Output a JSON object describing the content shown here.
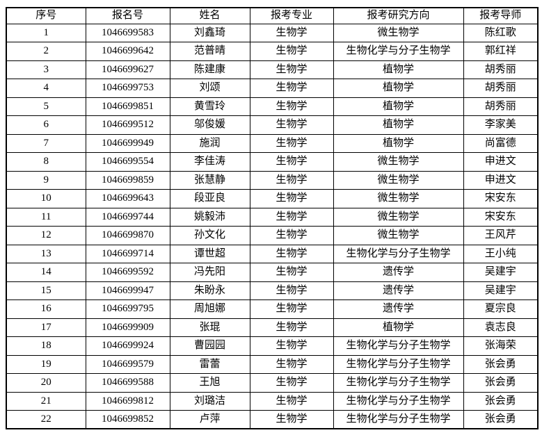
{
  "table": {
    "columns": [
      "序号",
      "报名号",
      "姓名",
      "报考专业",
      "报考研究方向",
      "报考导师"
    ],
    "rows": [
      [
        "1",
        "1046699583",
        "刘鑫琦",
        "生物学",
        "微生物学",
        "陈红歌"
      ],
      [
        "2",
        "1046699642",
        "范普晴",
        "生物学",
        "生物化学与分子生物学",
        "郭红祥"
      ],
      [
        "3",
        "1046699627",
        "陈建康",
        "生物学",
        "植物学",
        "胡秀丽"
      ],
      [
        "4",
        "1046699753",
        "刘颂",
        "生物学",
        "植物学",
        "胡秀丽"
      ],
      [
        "5",
        "1046699851",
        "黄雪玲",
        "生物学",
        "植物学",
        "胡秀丽"
      ],
      [
        "6",
        "1046699512",
        "邬俊媛",
        "生物学",
        "植物学",
        "李家美"
      ],
      [
        "7",
        "1046699949",
        "施润",
        "生物学",
        "植物学",
        "尚富德"
      ],
      [
        "8",
        "1046699554",
        "李佳涛",
        "生物学",
        "微生物学",
        "申进文"
      ],
      [
        "9",
        "1046699859",
        "张慧静",
        "生物学",
        "微生物学",
        "申进文"
      ],
      [
        "10",
        "1046699643",
        "段亚良",
        "生物学",
        "微生物学",
        "宋安东"
      ],
      [
        "11",
        "1046699744",
        "姚毅沛",
        "生物学",
        "微生物学",
        "宋安东"
      ],
      [
        "12",
        "1046699870",
        "孙文化",
        "生物学",
        "微生物学",
        "王风芹"
      ],
      [
        "13",
        "1046699714",
        "谭世超",
        "生物学",
        "生物化学与分子生物学",
        "王小纯"
      ],
      [
        "14",
        "1046699592",
        "冯先阳",
        "生物学",
        "遗传学",
        "吴建宇"
      ],
      [
        "15",
        "1046699947",
        "朱盼永",
        "生物学",
        "遗传学",
        "吴建宇"
      ],
      [
        "16",
        "1046699795",
        "周旭娜",
        "生物学",
        "遗传学",
        "夏宗良"
      ],
      [
        "17",
        "1046699909",
        "张琨",
        "生物学",
        "植物学",
        "袁志良"
      ],
      [
        "18",
        "1046699924",
        "曹园园",
        "生物学",
        "生物化学与分子生物学",
        "张海荣"
      ],
      [
        "19",
        "1046699579",
        "雷蕾",
        "生物学",
        "生物化学与分子生物学",
        "张会勇"
      ],
      [
        "20",
        "1046699588",
        "王旭",
        "生物学",
        "生物化学与分子生物学",
        "张会勇"
      ],
      [
        "21",
        "1046699812",
        "刘璐洁",
        "生物学",
        "生物化学与分子生物学",
        "张会勇"
      ],
      [
        "22",
        "1046699852",
        "卢萍",
        "生物学",
        "生物化学与分子生物学",
        "张会勇"
      ]
    ],
    "column_keys": [
      "index",
      "regno",
      "name",
      "major",
      "direction",
      "advisor"
    ]
  },
  "colors": {
    "border": "#000000",
    "text": "#000000",
    "background": "#ffffff"
  }
}
